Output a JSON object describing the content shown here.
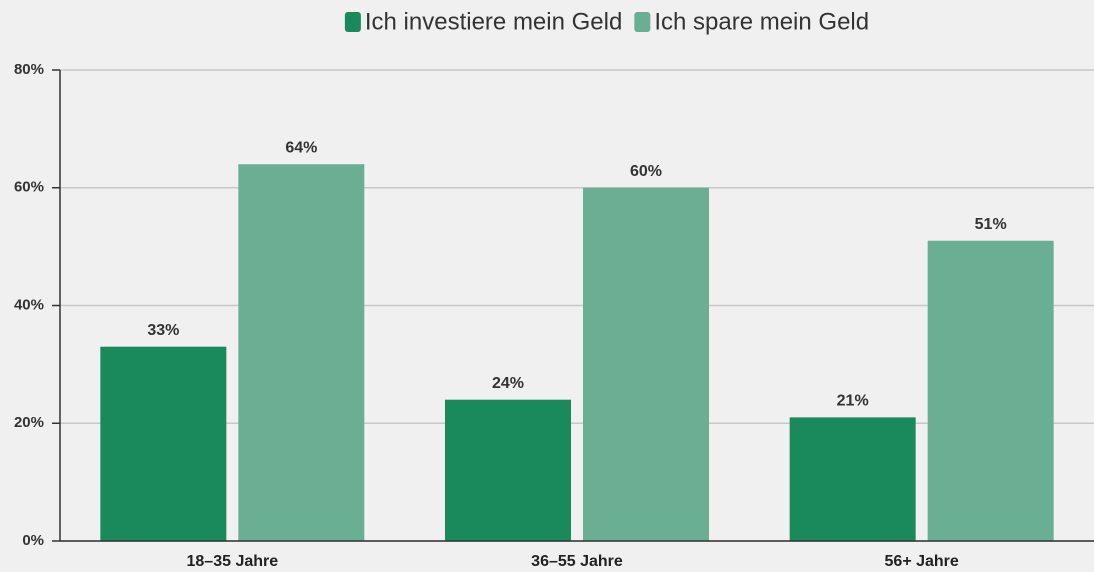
{
  "chart_data": {
    "type": "bar",
    "categories": [
      "18–35 Jahre",
      "36–55 Jahre",
      "56+ Jahre"
    ],
    "series": [
      {
        "name": "Ich investiere mein Geld",
        "color": "#1a8a5c",
        "values": [
          33,
          24,
          21
        ],
        "value_labels": [
          "33%",
          "24%",
          "21%"
        ]
      },
      {
        "name": "Ich spare mein Geld",
        "color": "#6aaf94",
        "values": [
          64,
          60,
          51
        ],
        "value_labels": [
          "64%",
          "60%",
          "51%"
        ]
      }
    ],
    "ylim": [
      0,
      80
    ],
    "yticks": [
      {
        "value": 0,
        "label": "0%"
      },
      {
        "value": 20,
        "label": "20%"
      },
      {
        "value": 40,
        "label": "40%"
      },
      {
        "value": 60,
        "label": "60%"
      },
      {
        "value": 80,
        "label": "80%"
      }
    ],
    "grid": true,
    "legend": "top"
  }
}
